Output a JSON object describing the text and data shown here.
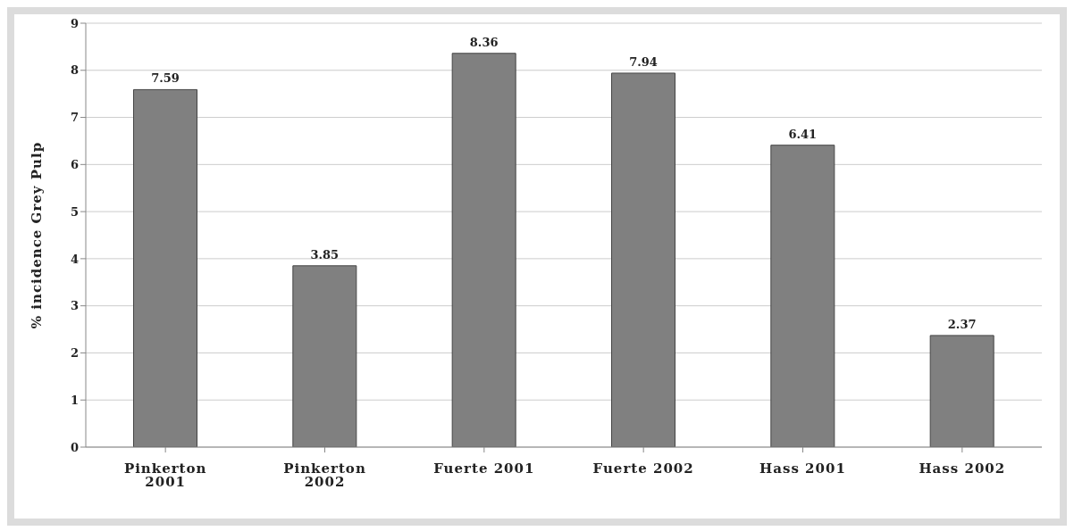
{
  "chart_data": {
    "type": "bar",
    "ylabel": "% incidence Grey Pulp",
    "categories": [
      "Pinkerton 2001",
      "Pinkerton 2002",
      "Fuerte 2001",
      "Fuerte 2002",
      "Hass 2001",
      "Hass 2002"
    ],
    "values": [
      7.59,
      3.85,
      8.36,
      7.94,
      6.41,
      2.37
    ],
    "color": "#808080",
    "ylim": [
      0,
      9
    ],
    "yticks": [
      0,
      1,
      2,
      3,
      4,
      5,
      6,
      7,
      8,
      9
    ],
    "grid": "y",
    "data_labels": true
  }
}
